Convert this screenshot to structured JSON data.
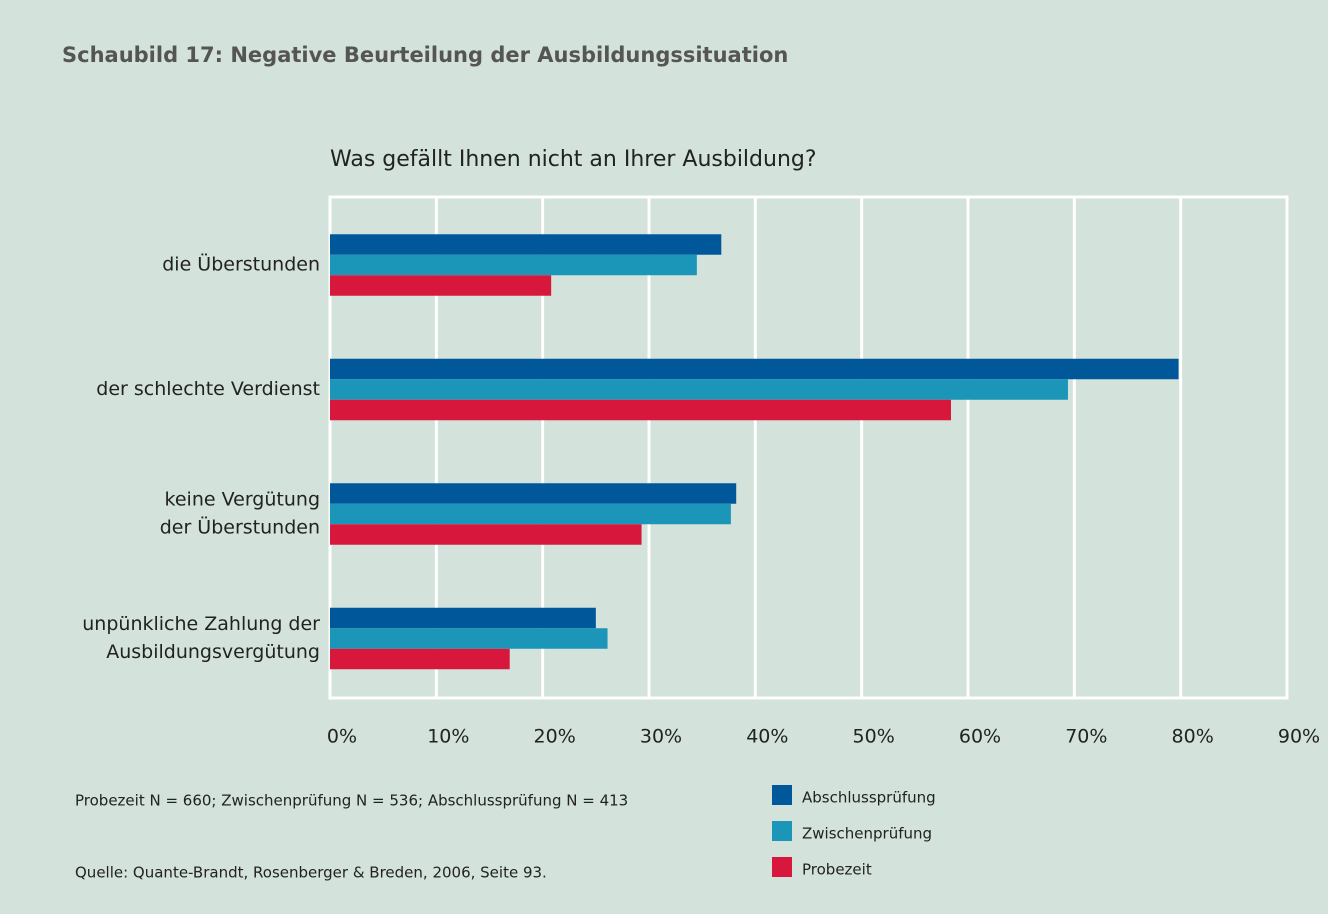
{
  "chart_data": {
    "type": "barh",
    "title": "Schaubild 17: Negative Beurteilung der Ausbildungssituation",
    "subtitle": "Was gefällt Ihnen nicht an Ihrer Ausbildung?",
    "categories": [
      [
        "die Überstunden"
      ],
      [
        "der schlechte Verdienst"
      ],
      [
        "keine Vergütung",
        "der Überstunden"
      ],
      [
        "unpünkliche Zahlung der",
        "Ausbildungsvergütung"
      ]
    ],
    "series": [
      {
        "name": "Abschlussprüfung",
        "color": "#00589a",
        "values": [
          36.8,
          79.8,
          38.2,
          25.0
        ]
      },
      {
        "name": "Zwischenprüfung",
        "color": "#1b95b8",
        "values": [
          34.5,
          69.4,
          37.7,
          26.1
        ]
      },
      {
        "name": "Probezeit",
        "color": "#d7173c",
        "values": [
          20.8,
          58.4,
          29.3,
          16.9
        ]
      }
    ],
    "xlim": [
      0,
      90
    ],
    "xticks": [
      {
        "value": 0,
        "label": "0%"
      },
      {
        "value": 10,
        "label": "10%"
      },
      {
        "value": 20,
        "label": "20%"
      },
      {
        "value": 30,
        "label": "30%"
      },
      {
        "value": 40,
        "label": "40%"
      },
      {
        "value": 50,
        "label": "50%"
      },
      {
        "value": 60,
        "label": "60%"
      },
      {
        "value": 70,
        "label": "70%"
      },
      {
        "value": 80,
        "label": "80%"
      },
      {
        "value": 90,
        "label": "90%"
      }
    ],
    "grid": true,
    "notes": [
      "Probezeit N = 660; Zwischenprüfung N = 536; Abschlussprüfung N = 413",
      "Quelle: Quante-Brandt, Rosenberger & Breden, 2006, Seite 93."
    ]
  }
}
